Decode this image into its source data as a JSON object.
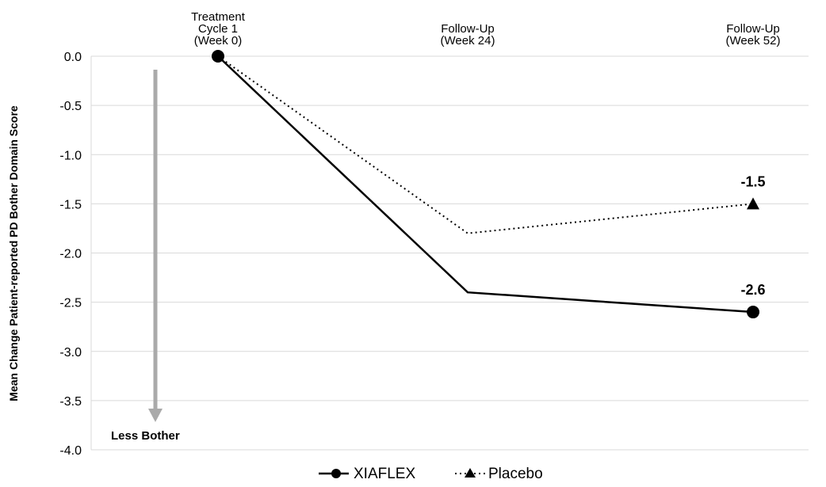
{
  "chart_data": {
    "type": "line",
    "title": "",
    "ylabel": "Mean Change Patient-reported  PD Bother Domain Score",
    "xlabel": "",
    "categories": [
      [
        "Treatment",
        "Cycle 1",
        "(Week 0)"
      ],
      [
        "Follow-Up",
        "(Week 24)"
      ],
      [
        "Follow-Up",
        "(Week 52)"
      ]
    ],
    "y_ticks": [
      "0.0",
      "-0.5",
      "-1.0",
      "-1.5",
      "-2.0",
      "-2.5",
      "-3.0",
      "-3.5",
      "-4.0"
    ],
    "ylim": [
      -4.0,
      0.0
    ],
    "grid": true,
    "series": [
      {
        "name": "XIAFLEX",
        "values": [
          0.0,
          -2.4,
          -2.6
        ],
        "style": "solid",
        "marker": "circle",
        "color": "#000000"
      },
      {
        "name": "Placebo",
        "values": [
          0.0,
          -1.8,
          -1.5
        ],
        "style": "dotted",
        "marker": "triangle",
        "color": "#000000"
      }
    ],
    "data_labels": [
      {
        "series": "Placebo",
        "index": 2,
        "text": "-1.5"
      },
      {
        "series": "XIAFLEX",
        "index": 2,
        "text": "-2.6"
      }
    ],
    "annotation": {
      "text": "Less Bother",
      "arrow_color": "#aaaaaa",
      "direction": "down"
    },
    "legend": {
      "position": "bottom-center"
    },
    "grid_color": "#d9d9d9"
  }
}
